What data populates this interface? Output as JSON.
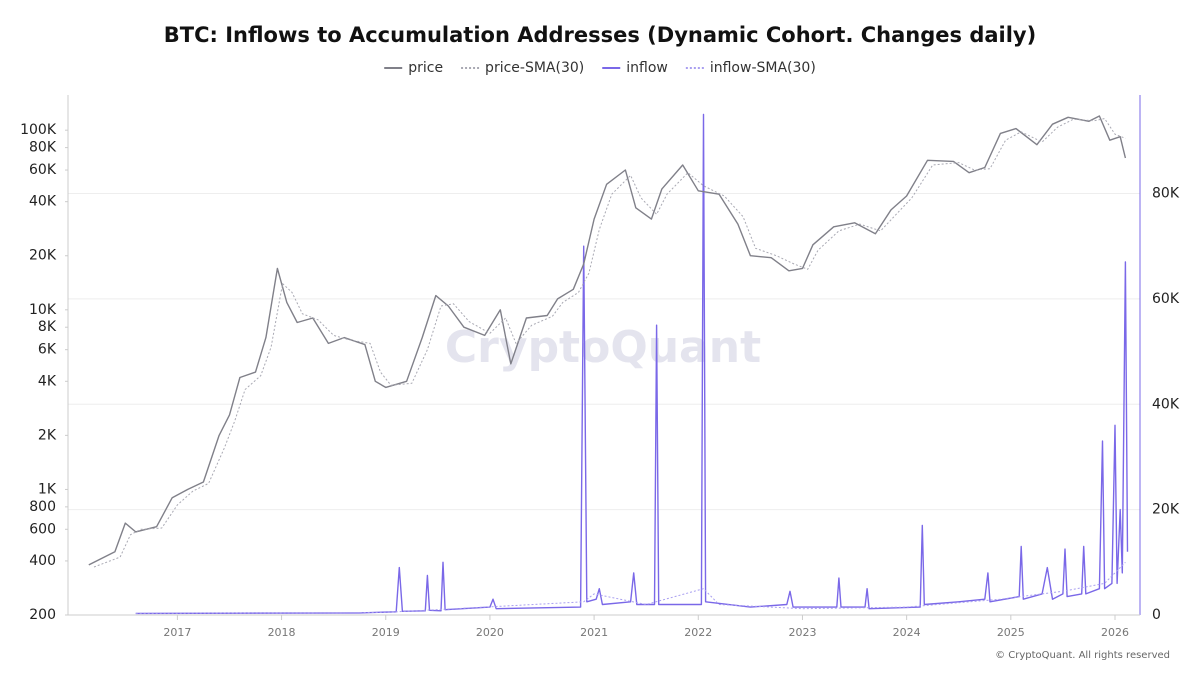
{
  "chart_data": {
    "type": "line",
    "title": "BTC: Inflows to Accumulation Addresses (Dynamic Cohort. Changes daily)",
    "watermark": "CryptoQuant",
    "footer": "© CryptoQuant. All rights reserved",
    "log_scale": true,
    "grid": true,
    "legend_position": "top",
    "xlim": [
      2015.95,
      2026.24
    ],
    "xticks": [
      2017,
      2018,
      2019,
      2020,
      2021,
      2022,
      2023,
      2024,
      2025,
      2026
    ],
    "ylim": [
      200,
      157000
    ],
    "yticks": [
      200,
      400,
      600,
      800,
      {
        "value": 1000,
        "label": "1K"
      },
      {
        "value": 2000,
        "label": "2K"
      },
      {
        "value": 4000,
        "label": "4K"
      },
      {
        "value": 6000,
        "label": "6K"
      },
      {
        "value": 8000,
        "label": "8K"
      },
      {
        "value": 10000,
        "label": "10K"
      },
      {
        "value": 20000,
        "label": "20K"
      },
      {
        "value": 40000,
        "label": "40K"
      },
      {
        "value": 60000,
        "label": "60K"
      },
      {
        "value": 80000,
        "label": "80K"
      },
      {
        "value": 100000,
        "label": "100K"
      }
    ],
    "y2lim": [
      0,
      98700
    ],
    "y2ticks": [
      0,
      {
        "value": 20000,
        "label": "20K"
      },
      {
        "value": 40000,
        "label": "40K"
      },
      {
        "value": 60000,
        "label": "60K"
      },
      {
        "value": 80000,
        "label": "80K"
      }
    ],
    "series": [
      {
        "name": "price",
        "color": "#808089",
        "line_style": "solid",
        "x": [
          2016.15,
          2016.4,
          2016.5,
          2016.6,
          2016.8,
          2016.95,
          2017.1,
          2017.25,
          2017.4,
          2017.5,
          2017.6,
          2017.75,
          2017.85,
          2017.96,
          2018.05,
          2018.15,
          2018.3,
          2018.45,
          2018.6,
          2018.8,
          2018.9,
          2019.0,
          2019.2,
          2019.35,
          2019.48,
          2019.6,
          2019.75,
          2019.95,
          2020.1,
          2020.2,
          2020.35,
          2020.55,
          2020.65,
          2020.8,
          2020.9,
          2021.0,
          2021.12,
          2021.3,
          2021.4,
          2021.55,
          2021.65,
          2021.85,
          2022.0,
          2022.2,
          2022.38,
          2022.5,
          2022.7,
          2022.87,
          2023.0,
          2023.1,
          2023.3,
          2023.5,
          2023.7,
          2023.85,
          2024.0,
          2024.2,
          2024.45,
          2024.6,
          2024.75,
          2024.9,
          2025.05,
          2025.25,
          2025.4,
          2025.55,
          2025.75,
          2025.85,
          2025.95,
          2026.05,
          2026.1
        ],
        "values": [
          380,
          450,
          650,
          580,
          620,
          900,
          1000,
          1100,
          2000,
          2600,
          4200,
          4500,
          7000,
          17000,
          11000,
          8500,
          9000,
          6500,
          7000,
          6400,
          4000,
          3700,
          4000,
          7000,
          12000,
          10500,
          8000,
          7200,
          10000,
          5000,
          9000,
          9300,
          11500,
          13000,
          18000,
          32000,
          50000,
          60000,
          37000,
          32000,
          47000,
          64000,
          46000,
          44000,
          30000,
          20000,
          19500,
          16500,
          17000,
          23000,
          29000,
          30500,
          26500,
          36000,
          43000,
          68000,
          67000,
          58000,
          62000,
          96000,
          102000,
          83000,
          108000,
          118000,
          112000,
          120000,
          88000,
          92000,
          70000
        ]
      },
      {
        "name": "price-SMA(30)",
        "color": "#a9a9b3",
        "line_style": "dotted",
        "x": [
          2016.2,
          2016.45,
          2016.55,
          2016.65,
          2016.85,
          2017.0,
          2017.15,
          2017.3,
          2017.45,
          2017.55,
          2017.65,
          2017.8,
          2017.9,
          2018.01,
          2018.1,
          2018.2,
          2018.35,
          2018.5,
          2018.65,
          2018.85,
          2018.95,
          2019.05,
          2019.25,
          2019.4,
          2019.53,
          2019.65,
          2019.8,
          2020.0,
          2020.15,
          2020.25,
          2020.4,
          2020.6,
          2020.7,
          2020.85,
          2020.95,
          2021.05,
          2021.17,
          2021.35,
          2021.45,
          2021.6,
          2021.7,
          2021.9,
          2022.05,
          2022.25,
          2022.43,
          2022.55,
          2022.75,
          2022.92,
          2023.05,
          2023.15,
          2023.35,
          2023.55,
          2023.75,
          2023.9,
          2024.05,
          2024.25,
          2024.5,
          2024.65,
          2024.8,
          2024.95,
          2025.1,
          2025.3,
          2025.45,
          2025.6,
          2025.8,
          2025.9,
          2026.0,
          2026.1
        ],
        "values": [
          370,
          420,
          560,
          600,
          610,
          820,
          980,
          1080,
          1700,
          2400,
          3600,
          4300,
          6200,
          14000,
          12500,
          9500,
          8800,
          7200,
          6800,
          6500,
          4500,
          3800,
          3900,
          6000,
          10500,
          10800,
          8600,
          7400,
          9000,
          6500,
          8200,
          9200,
          11000,
          12500,
          16000,
          28000,
          44000,
          56000,
          42000,
          34000,
          44000,
          58000,
          49000,
          43000,
          33000,
          22000,
          20000,
          18000,
          16800,
          21500,
          27500,
          30000,
          27500,
          34000,
          42000,
          64000,
          66000,
          60000,
          61000,
          88000,
          98000,
          86000,
          104000,
          115000,
          113000,
          116000,
          95000,
          90000
        ]
      },
      {
        "name": "inflow",
        "color": "#7a68e8",
        "line_style": "solid",
        "axis": "y2",
        "x": [
          2016.6,
          2018.75,
          2019.1,
          2019.13,
          2019.16,
          2019.38,
          2019.4,
          2019.42,
          2019.53,
          2019.55,
          2019.57,
          2020.0,
          2020.03,
          2020.06,
          2020.87,
          2020.9,
          2020.93,
          2021.02,
          2021.05,
          2021.08,
          2021.35,
          2021.38,
          2021.41,
          2021.58,
          2021.6,
          2021.62,
          2022.03,
          2022.05,
          2022.07,
          2022.5,
          2022.85,
          2022.88,
          2022.91,
          2023.33,
          2023.35,
          2023.37,
          2023.6,
          2023.62,
          2023.64,
          2024.13,
          2024.15,
          2024.17,
          2024.5,
          2024.75,
          2024.78,
          2024.8,
          2025.08,
          2025.1,
          2025.12,
          2025.3,
          2025.35,
          2025.4,
          2025.5,
          2025.52,
          2025.54,
          2025.68,
          2025.7,
          2025.72,
          2025.85,
          2025.88,
          2025.9,
          2025.97,
          2026.0,
          2026.02,
          2026.05,
          2026.07,
          2026.1,
          2026.12
        ],
        "values": [
          300,
          400,
          600,
          9000,
          700,
          800,
          7500,
          900,
          800,
          10000,
          1000,
          1500,
          3000,
          1200,
          1500,
          70000,
          2500,
          3000,
          5000,
          2000,
          2500,
          8000,
          2000,
          2000,
          55000,
          2000,
          2000,
          95000,
          2500,
          1500,
          2000,
          4500,
          1500,
          1500,
          7000,
          1500,
          1500,
          5000,
          1200,
          1500,
          17000,
          2000,
          2500,
          3000,
          8000,
          2500,
          3500,
          13000,
          3000,
          4000,
          9000,
          3000,
          4000,
          12500,
          3500,
          4000,
          13000,
          4000,
          5000,
          33000,
          5000,
          6000,
          36000,
          6000,
          20000,
          8000,
          67000,
          12000
        ]
      },
      {
        "name": "inflow-SMA(30)",
        "color": "#a99ff0",
        "line_style": "dotted",
        "axis": "y2",
        "x": [
          2016.6,
          2019.0,
          2020.9,
          2021.0,
          2021.5,
          2022.05,
          2022.2,
          2023.0,
          2024.0,
          2024.9,
          2025.5,
          2025.9,
          2026.1
        ],
        "values": [
          300,
          500,
          2500,
          4000,
          2000,
          5000,
          2000,
          1200,
          1500,
          3000,
          4500,
          6000,
          10000
        ]
      }
    ]
  }
}
